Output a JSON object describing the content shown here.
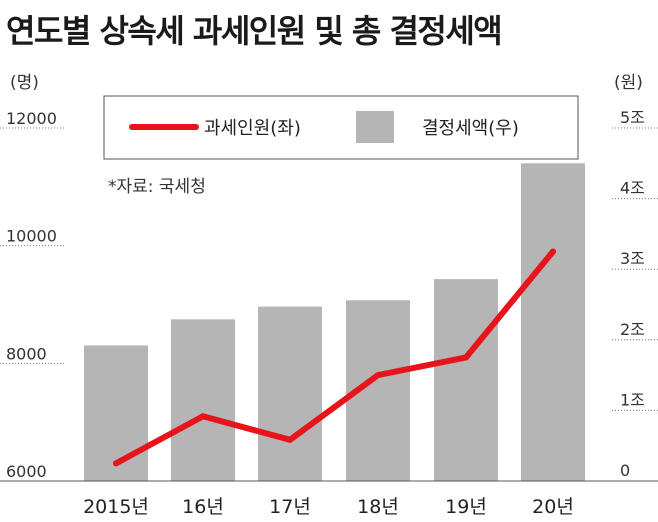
{
  "chart_data": {
    "type": "bar+line",
    "title": "연도별 상속세 과세인원 및 총 결정세액",
    "source": "*자료: 국세청",
    "categories": [
      "2015년",
      "16년",
      "17년",
      "18년",
      "19년",
      "20년"
    ],
    "left_axis": {
      "unit": "(명)",
      "ticks": [
        "12000",
        "10000",
        "8000",
        "6000"
      ],
      "range": [
        6000,
        12000
      ]
    },
    "right_axis": {
      "unit": "(원)",
      "ticks": [
        "5조",
        "4조",
        "3조",
        "2조",
        "1조",
        "0"
      ],
      "range": [
        0,
        5
      ]
    },
    "series": [
      {
        "name": "과세인원(좌)",
        "type": "line",
        "axis": "left",
        "color": "#e8141b",
        "values": [
          6300,
          7100,
          6700,
          7800,
          8100,
          9900
        ]
      },
      {
        "name": "결정세액(우)",
        "type": "bar",
        "axis": "right",
        "color": "#b5b5b5",
        "values": [
          1.92,
          2.29,
          2.47,
          2.56,
          2.86,
          4.5
        ]
      }
    ],
    "legend_position": "top"
  }
}
